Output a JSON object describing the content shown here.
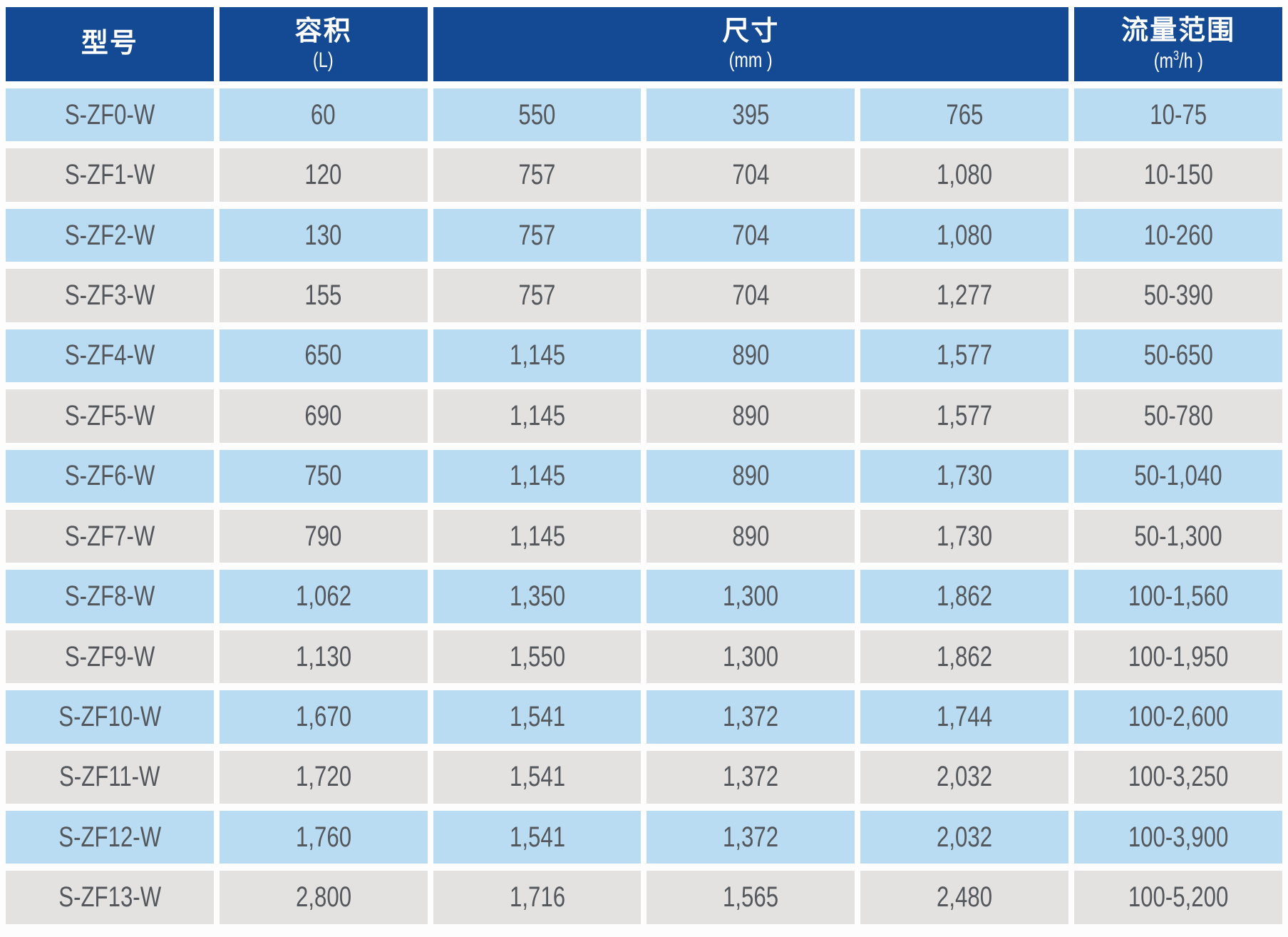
{
  "chart_data": {
    "type": "table",
    "headers": {
      "model": {
        "title": "型号"
      },
      "volume": {
        "title": "容积",
        "unit": "(L)"
      },
      "dimensions": {
        "title": "尺寸",
        "unit": "(mm )"
      },
      "flow_range": {
        "title": "流量范围",
        "unit_pre": "(m",
        "unit_sup": "3",
        "unit_post": "/h )"
      }
    },
    "col_names": [
      "model-cell",
      "volume-cell",
      "dimension-a-cell",
      "dimension-b-cell",
      "dimension-c-cell",
      "flow-range-cell"
    ],
    "rows": [
      [
        "S-ZF0-W",
        "60",
        "550",
        "395",
        "765",
        "10-75"
      ],
      [
        "S-ZF1-W",
        "120",
        "757",
        "704",
        "1,080",
        "10-150"
      ],
      [
        "S-ZF2-W",
        "130",
        "757",
        "704",
        "1,080",
        "10-260"
      ],
      [
        "S-ZF3-W",
        "155",
        "757",
        "704",
        "1,277",
        "50-390"
      ],
      [
        "S-ZF4-W",
        "650",
        "1,145",
        "890",
        "1,577",
        "50-650"
      ],
      [
        "S-ZF5-W",
        "690",
        "1,145",
        "890",
        "1,577",
        "50-780"
      ],
      [
        "S-ZF6-W",
        "750",
        "1,145",
        "890",
        "1,730",
        "50-1,040"
      ],
      [
        "S-ZF7-W",
        "790",
        "1,145",
        "890",
        "1,730",
        "50-1,300"
      ],
      [
        "S-ZF8-W",
        "1,062",
        "1,350",
        "1,300",
        "1,862",
        "100-1,560"
      ],
      [
        "S-ZF9-W",
        "1,130",
        "1,550",
        "1,300",
        "1,862",
        "100-1,950"
      ],
      [
        "S-ZF10-W",
        "1,670",
        "1,541",
        "1,372",
        "1,744",
        "100-2,600"
      ],
      [
        "S-ZF11-W",
        "1,720",
        "1,541",
        "1,372",
        "2,032",
        "100-3,250"
      ],
      [
        "S-ZF12-W",
        "1,760",
        "1,541",
        "1,372",
        "2,032",
        "100-3,900"
      ],
      [
        "S-ZF13-W",
        "2,800",
        "1,716",
        "1,565",
        "2,480",
        "100-5,200"
      ]
    ],
    "colors": {
      "header_bg": "#134a93",
      "header_text": "#ffffff",
      "row_blue": "#b9dcf3",
      "row_gray": "#e3e2e1",
      "cell_text": "#54585c"
    },
    "layout": {
      "column_count": 6,
      "dimension_subcolumns": 3,
      "row_count": 14
    }
  }
}
